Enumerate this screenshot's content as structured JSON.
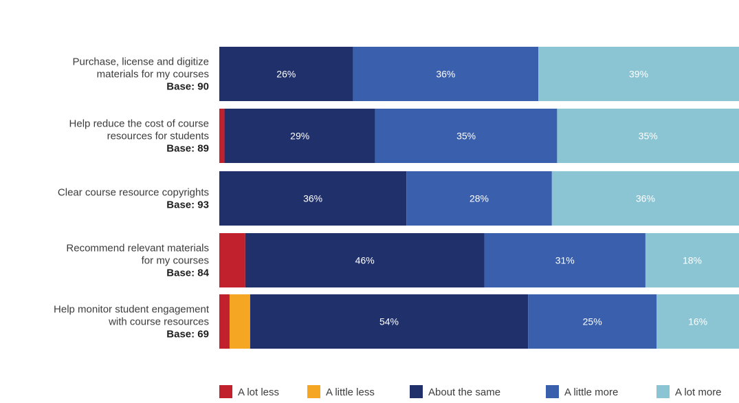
{
  "chart_data": {
    "type": "bar",
    "orientation": "horizontal",
    "stacked": true,
    "xlim": [
      0,
      100
    ],
    "grid": false,
    "legend_position": "bottom",
    "categories": [
      {
        "label": [
          "Purchase, license and digitize",
          "materials for my courses"
        ],
        "base": "Base: 90"
      },
      {
        "label": [
          "Help reduce the cost of course",
          "resources for students"
        ],
        "base": "Base: 89"
      },
      {
        "label": [
          "Clear course resource copyrights"
        ],
        "base": "Base: 93"
      },
      {
        "label": [
          "Recommend relevant materials",
          "for my courses"
        ],
        "base": "Base: 84"
      },
      {
        "label": [
          "Help monitor student engagement",
          "with course resources"
        ],
        "base": "Base: 69"
      }
    ],
    "series": [
      {
        "name": "A lot less",
        "color": "#c1202d",
        "values": [
          0,
          1,
          0,
          5,
          2
        ],
        "labels": [
          "",
          "",
          "",
          "",
          ""
        ]
      },
      {
        "name": "A little less",
        "color": "#f5a623",
        "values": [
          0,
          0,
          0,
          0,
          4
        ],
        "labels": [
          "",
          "",
          "",
          "",
          ""
        ]
      },
      {
        "name": "About the same",
        "color": "#20306b",
        "values": [
          26,
          29,
          36,
          46,
          54
        ],
        "labels": [
          "26%",
          "29%",
          "36%",
          "46%",
          "54%"
        ]
      },
      {
        "name": "A little more",
        "color": "#3a5fad",
        "values": [
          36,
          35,
          28,
          31,
          25
        ],
        "labels": [
          "36%",
          "35%",
          "28%",
          "31%",
          "25%"
        ]
      },
      {
        "name": "A lot more",
        "color": "#8bc4d3",
        "values": [
          39,
          35,
          36,
          18,
          16
        ],
        "labels": [
          "39%",
          "35%",
          "36%",
          "18%",
          "16%"
        ]
      }
    ]
  }
}
